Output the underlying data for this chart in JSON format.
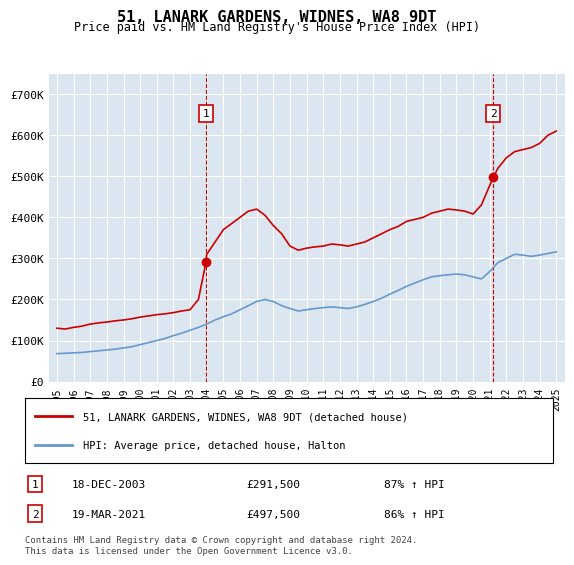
{
  "title": "51, LANARK GARDENS, WIDNES, WA8 9DT",
  "subtitle": "Price paid vs. HM Land Registry's House Price Index (HPI)",
  "bg_color": "#dce6f0",
  "plot_bg_color": "#dce6f0",
  "red_line_color": "#cc0000",
  "blue_line_color": "#6699cc",
  "annotation1": {
    "label": "1",
    "date": "18-DEC-2003",
    "price": 291500,
    "pct": "87% ↑ HPI",
    "x_year": 2003.96
  },
  "annotation2": {
    "label": "2",
    "date": "19-MAR-2021",
    "price": 497500,
    "pct": "86% ↑ HPI",
    "x_year": 2021.21
  },
  "legend_red": "51, LANARK GARDENS, WIDNES, WA8 9DT (detached house)",
  "legend_blue": "HPI: Average price, detached house, Halton",
  "footer": "Contains HM Land Registry data © Crown copyright and database right 2024.\nThis data is licensed under the Open Government Licence v3.0.",
  "ylim": [
    0,
    750000
  ],
  "xlim_left": 1994.5,
  "xlim_right": 2025.5,
  "yticks": [
    0,
    100000,
    200000,
    300000,
    400000,
    500000,
    600000,
    700000
  ],
  "ytick_labels": [
    "£0",
    "£100K",
    "£200K",
    "£300K",
    "£400K",
    "£500K",
    "£600K",
    "£700K"
  ],
  "xticks": [
    1995,
    1996,
    1997,
    1998,
    1999,
    2000,
    2001,
    2002,
    2003,
    2004,
    2005,
    2006,
    2007,
    2008,
    2009,
    2010,
    2011,
    2012,
    2013,
    2014,
    2015,
    2016,
    2017,
    2018,
    2019,
    2020,
    2021,
    2022,
    2023,
    2024,
    2025
  ],
  "red_x": [
    1995.0,
    1995.5,
    1996.0,
    1996.5,
    1997.0,
    1997.5,
    1998.0,
    1998.5,
    1999.0,
    1999.5,
    2000.0,
    2000.5,
    2001.0,
    2001.5,
    2002.0,
    2002.5,
    2003.0,
    2003.5,
    2003.96,
    2004.0,
    2004.5,
    2005.0,
    2005.5,
    2006.0,
    2006.5,
    2007.0,
    2007.5,
    2008.0,
    2008.5,
    2009.0,
    2009.5,
    2010.0,
    2010.5,
    2011.0,
    2011.5,
    2012.0,
    2012.5,
    2013.0,
    2013.5,
    2014.0,
    2014.5,
    2015.0,
    2015.5,
    2016.0,
    2016.5,
    2017.0,
    2017.5,
    2018.0,
    2018.5,
    2019.0,
    2019.5,
    2020.0,
    2020.5,
    2021.21,
    2021.5,
    2022.0,
    2022.5,
    2023.0,
    2023.5,
    2024.0,
    2024.5,
    2025.0
  ],
  "red_y": [
    130000,
    128000,
    132000,
    135000,
    140000,
    143000,
    145000,
    148000,
    150000,
    153000,
    157000,
    160000,
    163000,
    165000,
    168000,
    172000,
    175000,
    200000,
    291500,
    310000,
    340000,
    370000,
    385000,
    400000,
    415000,
    420000,
    405000,
    380000,
    360000,
    330000,
    320000,
    325000,
    328000,
    330000,
    335000,
    333000,
    330000,
    335000,
    340000,
    350000,
    360000,
    370000,
    378000,
    390000,
    395000,
    400000,
    410000,
    415000,
    420000,
    418000,
    415000,
    408000,
    430000,
    497500,
    520000,
    545000,
    560000,
    565000,
    570000,
    580000,
    600000,
    610000
  ],
  "blue_x": [
    1995.0,
    1995.5,
    1996.0,
    1996.5,
    1997.0,
    1997.5,
    1998.0,
    1998.5,
    1999.0,
    1999.5,
    2000.0,
    2000.5,
    2001.0,
    2001.5,
    2002.0,
    2002.5,
    2003.0,
    2003.5,
    2004.0,
    2004.5,
    2005.0,
    2005.5,
    2006.0,
    2006.5,
    2007.0,
    2007.5,
    2008.0,
    2008.5,
    2009.0,
    2009.5,
    2010.0,
    2010.5,
    2011.0,
    2011.5,
    2012.0,
    2012.5,
    2013.0,
    2013.5,
    2014.0,
    2014.5,
    2015.0,
    2015.5,
    2016.0,
    2016.5,
    2017.0,
    2017.5,
    2018.0,
    2018.5,
    2019.0,
    2019.5,
    2020.0,
    2020.5,
    2021.0,
    2021.5,
    2022.0,
    2022.5,
    2023.0,
    2023.5,
    2024.0,
    2024.5,
    2025.0
  ],
  "blue_y": [
    68000,
    69000,
    70000,
    71000,
    73000,
    75000,
    77000,
    79000,
    82000,
    85000,
    90000,
    95000,
    100000,
    105000,
    112000,
    118000,
    125000,
    132000,
    140000,
    150000,
    158000,
    165000,
    175000,
    185000,
    195000,
    200000,
    195000,
    185000,
    178000,
    172000,
    175000,
    178000,
    180000,
    182000,
    180000,
    178000,
    182000,
    188000,
    195000,
    203000,
    213000,
    222000,
    232000,
    240000,
    248000,
    255000,
    258000,
    260000,
    262000,
    260000,
    255000,
    250000,
    268000,
    290000,
    300000,
    310000,
    308000,
    305000,
    308000,
    312000,
    316000
  ]
}
